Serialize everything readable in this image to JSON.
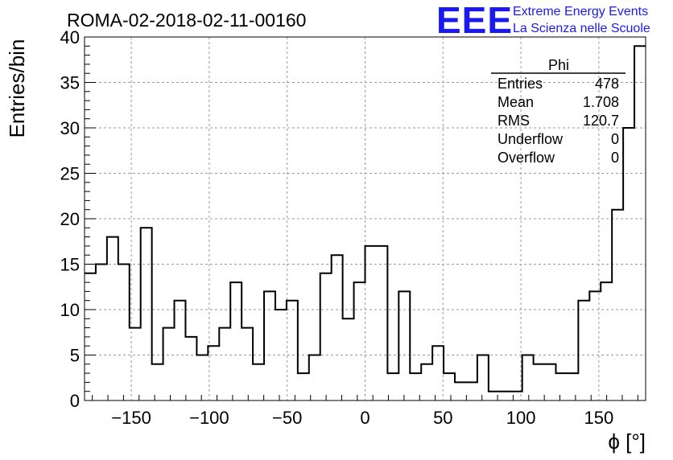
{
  "title": "ROMA-02-2018-02-11-00160",
  "logo": {
    "mark": "EEE",
    "line1": "Extreme Energy Events",
    "line2": "La Scienza nelle Scuole",
    "color": "#1a1aee"
  },
  "stats": {
    "name": "Phi",
    "rows": [
      {
        "label": "Entries",
        "value": "478"
      },
      {
        "label": "Mean",
        "value": "1.708"
      },
      {
        "label": "RMS",
        "value": "120.7"
      },
      {
        "label": "Underflow",
        "value": "0"
      },
      {
        "label": "Overflow",
        "value": "0"
      }
    ]
  },
  "chart_data": {
    "type": "bar",
    "style": "step-histogram",
    "title": "ROMA-02-2018-02-11-00160",
    "xlabel": "ϕ [°]",
    "ylabel": "Entries/bin",
    "xlim": [
      -180,
      180
    ],
    "ylim": [
      0,
      40
    ],
    "bin_width": 7.2,
    "grid": true,
    "x_ticks": [
      -150,
      -100,
      -50,
      0,
      50,
      100,
      150
    ],
    "x_tick_labels": [
      "−150",
      "−100",
      "−50",
      "0",
      "50",
      "100",
      "150"
    ],
    "y_ticks": [
      0,
      5,
      10,
      15,
      20,
      25,
      30,
      35,
      40
    ],
    "y_tick_labels": [
      "0",
      "5",
      "10",
      "15",
      "20",
      "25",
      "30",
      "35",
      "40"
    ],
    "values": [
      14,
      15,
      18,
      15,
      8,
      19,
      4,
      8,
      11,
      7,
      5,
      6,
      8,
      13,
      8,
      4,
      12,
      10,
      11,
      3,
      5,
      14,
      16,
      9,
      13,
      17,
      17,
      3,
      12,
      3,
      4,
      6,
      3,
      2,
      2,
      5,
      1,
      1,
      1,
      5,
      4,
      4,
      3,
      3,
      11,
      12,
      13,
      21,
      30,
      39
    ]
  }
}
